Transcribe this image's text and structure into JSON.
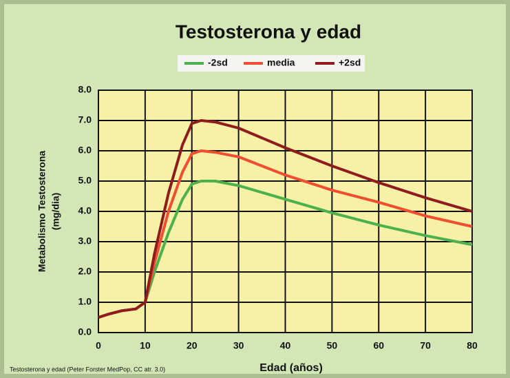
{
  "chart_data": {
    "type": "line",
    "title": "Testosterona y edad",
    "xlabel": "Edad (años)",
    "ylabel": [
      "Metabolismo Testosterona",
      "(mg/dia)"
    ],
    "source": "Testosterona y edad (Peter Forster MedPop, CC atr. 3.0)",
    "x": [
      0,
      2,
      5,
      8,
      10,
      12,
      15,
      18,
      20,
      22,
      25,
      30,
      40,
      50,
      60,
      70,
      80
    ],
    "series": [
      {
        "name": "-2sd",
        "color": "#4cb04c",
        "values": [
          0.5,
          0.6,
          0.72,
          0.78,
          1.0,
          2.0,
          3.3,
          4.4,
          4.9,
          5.0,
          5.0,
          4.85,
          4.4,
          3.95,
          3.55,
          3.2,
          2.9
        ]
      },
      {
        "name": "media",
        "color": "#f04e30",
        "values": [
          0.5,
          0.6,
          0.72,
          0.78,
          1.0,
          2.3,
          4.0,
          5.3,
          5.9,
          6.0,
          5.95,
          5.8,
          5.2,
          4.7,
          4.3,
          3.85,
          3.5
        ]
      },
      {
        "name": "+2sd",
        "color": "#8e1c1c",
        "values": [
          0.5,
          0.6,
          0.72,
          0.78,
          1.0,
          2.6,
          4.6,
          6.2,
          6.9,
          7.0,
          6.95,
          6.75,
          6.1,
          5.5,
          4.95,
          4.45,
          4.0
        ]
      }
    ],
    "xlim": [
      0,
      80
    ],
    "xticks": [
      0,
      10,
      20,
      30,
      40,
      50,
      60,
      70,
      80
    ],
    "ylim": [
      0,
      8
    ],
    "yticks": [
      {
        "value": 0,
        "label": "0.0"
      },
      {
        "value": 1,
        "label": "1.0"
      },
      {
        "value": 2,
        "label": "2.0"
      },
      {
        "value": 3,
        "label": "3.0"
      },
      {
        "value": 4,
        "label": "4.0"
      },
      {
        "value": 5,
        "label": "5.0"
      },
      {
        "value": 6,
        "label": "6.0"
      },
      {
        "value": 7,
        "label": "7.0"
      },
      {
        "value": 8,
        "label": "8.0"
      }
    ],
    "grid": true
  }
}
